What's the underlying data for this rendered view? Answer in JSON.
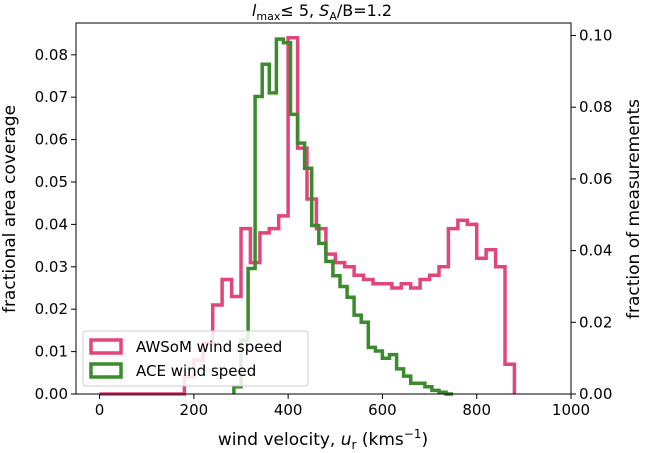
{
  "chart_data": {
    "type": "histogram-step",
    "title_parts": {
      "l": "l",
      "max": "max",
      "le_num": "≤  5, ",
      "S": "S",
      "A": "A",
      "rest": "/B=1.2"
    },
    "title": "l_max ≤ 5, S_A/B=1.2",
    "xlabel_main": "wind velocity, ",
    "xlabel_u": "u",
    "xlabel_r": "r",
    "xlabel_unit": " (kms",
    "xlabel_exp": "−1",
    "xlabel_close": ")",
    "ylabel_left": "fractional area coverage",
    "ylabel_right": "fraction of measurements",
    "xlim": [
      -50,
      1000
    ],
    "ylim_left": [
      0,
      0.0875
    ],
    "ylim_right": [
      0,
      0.1035
    ],
    "xticks": [
      0,
      200,
      400,
      600,
      800,
      1000
    ],
    "xtick_labels": [
      "0",
      "200",
      "400",
      "600",
      "800",
      "1000"
    ],
    "yticks_left": [
      0.0,
      0.01,
      0.02,
      0.03,
      0.04,
      0.05,
      0.06,
      0.07,
      0.08
    ],
    "ytick_labels_left": [
      "0.00",
      "0.01",
      "0.02",
      "0.03",
      "0.04",
      "0.05",
      "0.06",
      "0.07",
      "0.08"
    ],
    "yticks_right": [
      0.0,
      0.02,
      0.04,
      0.06,
      0.08,
      0.1
    ],
    "ytick_labels_right": [
      "0.00",
      "0.02",
      "0.04",
      "0.06",
      "0.08",
      "0.10"
    ],
    "legend_position": "lower-left",
    "series": [
      {
        "name": "AWSoM wind speed",
        "axis": "left",
        "color": "#e0457b",
        "bin_width": 20,
        "bin_start": 0,
        "values": [
          0,
          0,
          0,
          0,
          0,
          0,
          0,
          0,
          0,
          0.004,
          0.008,
          0.012,
          0.021,
          0.027,
          0.023,
          0.039,
          0.031,
          0.038,
          0.039,
          0.042,
          0.084,
          0.058,
          0.046,
          0.039,
          0.033,
          0.031,
          0.03,
          0.028,
          0.027,
          0.026,
          0.026,
          0.025,
          0.026,
          0.025,
          0.027,
          0.028,
          0.03,
          0.039,
          0.041,
          0.04,
          0.032,
          0.034,
          0.03,
          0.007
        ]
      },
      {
        "name": "ACE wind speed",
        "axis": "right",
        "color": "#3b8a2d",
        "bin_width": 15,
        "bin_start": 285,
        "values": [
          0.002,
          0.015,
          0.035,
          0.083,
          0.092,
          0.084,
          0.099,
          0.098,
          0.078,
          0.07,
          0.063,
          0.047,
          0.042,
          0.037,
          0.033,
          0.03,
          0.027,
          0.022,
          0.02,
          0.013,
          0.012,
          0.01,
          0.011,
          0.007,
          0.005,
          0.003,
          0.003,
          0.002,
          0.001,
          0.0005,
          0.0
        ]
      }
    ],
    "legend": [
      "AWSoM wind speed",
      "ACE wind speed"
    ]
  }
}
